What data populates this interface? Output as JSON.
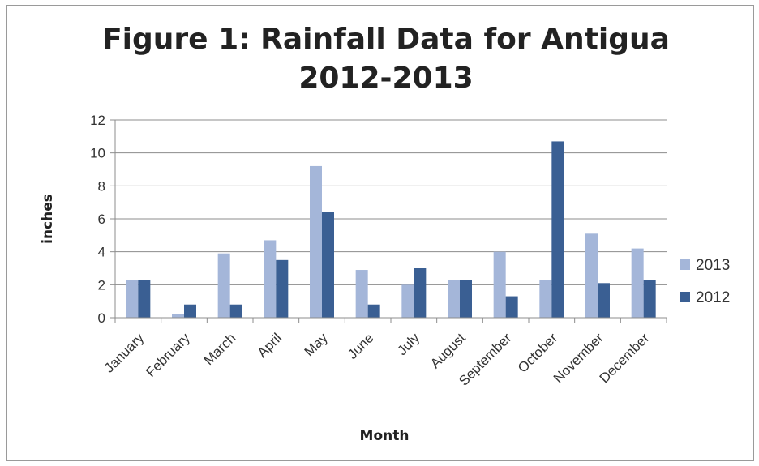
{
  "chart_data": {
    "type": "bar",
    "title_line1": "Figure 1: Rainfall Data for Antigua",
    "title_line2": "2012-2013",
    "xlabel": "Month",
    "ylabel": "inches",
    "ylim": [
      0,
      12
    ],
    "yticks": [
      "0",
      "2",
      "4",
      "6",
      "8",
      "10",
      "12"
    ],
    "grid": true,
    "legend_position": "right",
    "categories": [
      "January",
      "February",
      "March",
      "April",
      "May",
      "June",
      "July",
      "August",
      "September",
      "October",
      "November",
      "December"
    ],
    "series": [
      {
        "name": "2013",
        "color": "#a4b6d9",
        "values": [
          2.3,
          0.2,
          3.9,
          4.7,
          9.2,
          2.9,
          2.0,
          2.3,
          4.0,
          2.3,
          5.1,
          4.2
        ]
      },
      {
        "name": "2012",
        "color": "#3a5f93",
        "values": [
          2.3,
          0.8,
          0.8,
          3.5,
          6.4,
          0.8,
          3.0,
          2.3,
          1.3,
          10.7,
          2.1,
          2.3
        ]
      }
    ]
  }
}
